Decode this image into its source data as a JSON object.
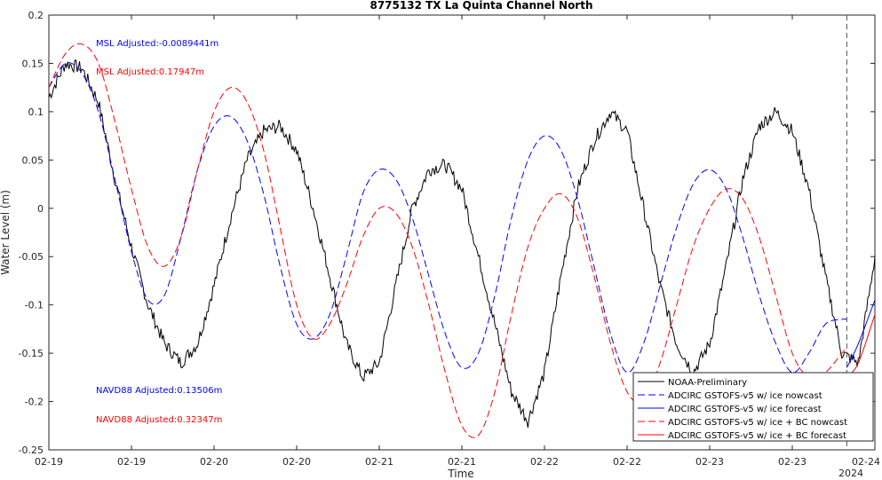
{
  "chart_data": {
    "type": "line",
    "title": "8775132 TX La Quinta Channel North",
    "xlabel": "Time",
    "ylabel": "Water Level (m)",
    "ylim": [
      -0.25,
      0.2
    ],
    "yticks": [
      -0.25,
      -0.2,
      -0.15,
      -0.1,
      -0.05,
      0,
      0.05,
      0.1,
      0.15,
      0.2
    ],
    "ytick_labels": [
      "-0.25",
      "-0.2",
      "-0.15",
      "-0.1",
      "-0.05",
      "0",
      "0.05",
      "0.1",
      "0.15",
      "0.2"
    ],
    "xlim": [
      0,
      5
    ],
    "xticks": [
      0,
      0.5,
      1,
      1.5,
      2,
      2.5,
      3,
      3.5,
      4,
      4.5,
      5
    ],
    "xtick_labels": [
      "02-19",
      "02-19",
      "02-20",
      "02-20",
      "02-21",
      "02-21",
      "02-22",
      "02-22",
      "02-23",
      "02-23",
      "02-24"
    ],
    "x_secondary_label": "2024",
    "forecast_boundary_x": 4.83,
    "grid": false,
    "legend_position": "bottom-right",
    "series": [
      {
        "name": "NOAA-Preliminary",
        "color": "#000000",
        "style": "solid",
        "x": [
          0,
          0.1,
          0.2,
          0.3,
          0.4,
          0.5,
          0.6,
          0.7,
          0.8,
          0.9,
          1.0,
          1.1,
          1.2,
          1.3,
          1.4,
          1.5,
          1.6,
          1.7,
          1.8,
          1.9,
          2.0,
          2.1,
          2.2,
          2.3,
          2.4,
          2.5,
          2.6,
          2.7,
          2.8,
          2.9,
          3.0,
          3.1,
          3.2,
          3.3,
          3.4,
          3.5,
          3.6,
          3.7,
          3.8,
          3.9,
          4.0,
          4.1,
          4.2,
          4.3,
          4.4,
          4.5,
          4.6,
          4.7,
          4.8,
          4.9,
          5.0
        ],
        "y": [
          0.115,
          0.15,
          0.145,
          0.11,
          0.03,
          -0.04,
          -0.1,
          -0.14,
          -0.16,
          -0.14,
          -0.08,
          -0.01,
          0.05,
          0.08,
          0.085,
          0.06,
          0.0,
          -0.07,
          -0.14,
          -0.175,
          -0.16,
          -0.08,
          0.0,
          0.04,
          0.045,
          0.02,
          -0.05,
          -0.12,
          -0.19,
          -0.22,
          -0.17,
          -0.07,
          0.02,
          0.07,
          0.1,
          0.08,
          0.0,
          -0.08,
          -0.14,
          -0.17,
          -0.14,
          -0.06,
          0.03,
          0.085,
          0.1,
          0.08,
          0.02,
          -0.07,
          -0.15,
          -0.16,
          -0.05
        ]
      },
      {
        "name": "ADCIRC GSTOFS-v5 w/ ice nowcast",
        "color": "#0000ff",
        "style": "dashed",
        "x": [
          0,
          0.1,
          0.2,
          0.3,
          0.4,
          0.5,
          0.6,
          0.7,
          0.8,
          0.9,
          1.0,
          1.1,
          1.2,
          1.3,
          1.4,
          1.5,
          1.6,
          1.7,
          1.8,
          1.9,
          2.0,
          2.1,
          2.2,
          2.3,
          2.4,
          2.5,
          2.6,
          2.7,
          2.8,
          2.9,
          3.0,
          3.1,
          3.2,
          3.3,
          3.4,
          3.5,
          3.6,
          3.7,
          3.8,
          3.9,
          4.0,
          4.1,
          4.2,
          4.3,
          4.4,
          4.5,
          4.6,
          4.7,
          4.8,
          4.83
        ],
        "y": [
          0.125,
          0.15,
          0.14,
          0.1,
          0.03,
          -0.045,
          -0.095,
          -0.09,
          -0.03,
          0.04,
          0.085,
          0.095,
          0.07,
          0.015,
          -0.06,
          -0.12,
          -0.135,
          -0.11,
          -0.05,
          0.015,
          0.04,
          0.03,
          -0.01,
          -0.07,
          -0.13,
          -0.165,
          -0.15,
          -0.09,
          -0.01,
          0.05,
          0.075,
          0.06,
          0.01,
          -0.06,
          -0.13,
          -0.17,
          -0.14,
          -0.08,
          -0.02,
          0.025,
          0.04,
          0.02,
          -0.03,
          -0.09,
          -0.14,
          -0.17,
          -0.15,
          -0.12,
          -0.115,
          -0.115
        ]
      },
      {
        "name": "ADCIRC GSTOFS-v5 w/ ice forecast",
        "color": "#0000ff",
        "style": "solid",
        "x": [
          4.83,
          4.9,
          5.0
        ],
        "y": [
          -0.165,
          -0.14,
          -0.095
        ]
      },
      {
        "name": "ADCIRC GSTOFS-v5 w/ ice + BC nowcast",
        "color": "#ff0000",
        "style": "dashed",
        "x": [
          0,
          0.1,
          0.2,
          0.3,
          0.4,
          0.5,
          0.6,
          0.7,
          0.8,
          0.9,
          1.0,
          1.1,
          1.2,
          1.3,
          1.4,
          1.5,
          1.6,
          1.7,
          1.8,
          1.9,
          2.0,
          2.1,
          2.2,
          2.3,
          2.4,
          2.5,
          2.6,
          2.7,
          2.8,
          2.9,
          3.0,
          3.1,
          3.2,
          3.3,
          3.4,
          3.5,
          3.6,
          3.7,
          3.8,
          3.9,
          4.0,
          4.1,
          4.2,
          4.3,
          4.4,
          4.5,
          4.6,
          4.7,
          4.8,
          4.83
        ],
        "y": [
          0.125,
          0.16,
          0.17,
          0.15,
          0.09,
          0.02,
          -0.04,
          -0.06,
          -0.03,
          0.04,
          0.1,
          0.125,
          0.11,
          0.06,
          -0.02,
          -0.1,
          -0.135,
          -0.12,
          -0.08,
          -0.03,
          0.0,
          -0.005,
          -0.04,
          -0.1,
          -0.17,
          -0.225,
          -0.235,
          -0.19,
          -0.11,
          -0.04,
          0.0,
          0.015,
          -0.01,
          -0.07,
          -0.14,
          -0.19,
          -0.2,
          -0.16,
          -0.1,
          -0.04,
          0.0,
          0.02,
          0.01,
          -0.03,
          -0.09,
          -0.15,
          -0.175,
          -0.17,
          -0.15,
          -0.145
        ]
      },
      {
        "name": "ADCIRC GSTOFS-v5 w/ ice + BC forecast",
        "color": "#ff0000",
        "style": "solid",
        "x": [
          4.83,
          4.9,
          5.0
        ],
        "y": [
          -0.175,
          -0.16,
          -0.11
        ]
      }
    ],
    "annotations": [
      {
        "text": "MSL Adjusted:-0.0089441m",
        "color": "#0000ff"
      },
      {
        "text": "MSL Adjusted:0.17947m",
        "color": "#ff0000"
      },
      {
        "text": "NAVD88 Adjusted:0.13506m",
        "color": "#0000ff"
      },
      {
        "text": "NAVD88 Adjusted:0.32347m",
        "color": "#ff0000"
      }
    ]
  }
}
